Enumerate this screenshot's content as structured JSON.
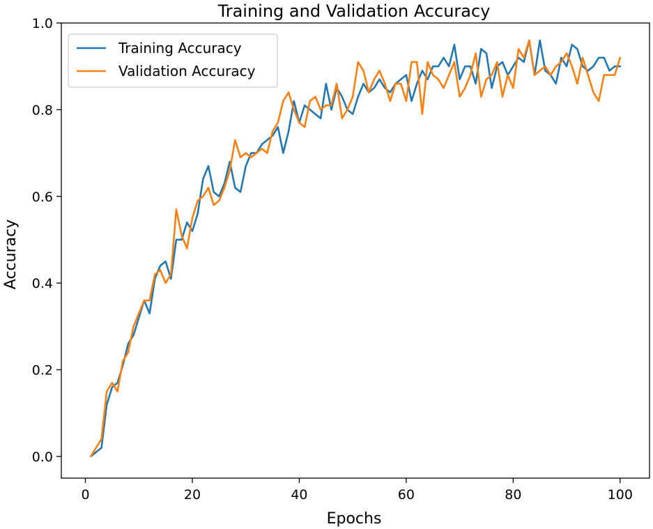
{
  "chart_data": {
    "type": "line",
    "title": "Training and Validation Accuracy",
    "xlabel": "Epochs",
    "ylabel": "Accuracy",
    "xlim": [
      -4.5,
      105.5
    ],
    "ylim": [
      -0.05,
      1.0
    ],
    "xticks": [
      0,
      20,
      40,
      60,
      80,
      100
    ],
    "yticks": [
      0.0,
      0.2,
      0.4,
      0.6,
      0.8,
      1.0
    ],
    "xtick_labels": [
      "0",
      "20",
      "40",
      "60",
      "80",
      "100"
    ],
    "ytick_labels": [
      "0.0",
      "0.2",
      "0.4",
      "0.6",
      "0.8",
      "1.0"
    ],
    "grid": false,
    "legend_position": "top-left",
    "x": [
      1,
      2,
      3,
      4,
      5,
      6,
      7,
      8,
      9,
      10,
      11,
      12,
      13,
      14,
      15,
      16,
      17,
      18,
      19,
      20,
      21,
      22,
      23,
      24,
      25,
      26,
      27,
      28,
      29,
      30,
      31,
      32,
      33,
      34,
      35,
      36,
      37,
      38,
      39,
      40,
      41,
      42,
      43,
      44,
      45,
      46,
      47,
      48,
      49,
      50,
      51,
      52,
      53,
      54,
      55,
      56,
      57,
      58,
      59,
      60,
      61,
      62,
      63,
      64,
      65,
      66,
      67,
      68,
      69,
      70,
      71,
      72,
      73,
      74,
      75,
      76,
      77,
      78,
      79,
      80,
      81,
      82,
      83,
      84,
      85,
      86,
      87,
      88,
      89,
      90,
      91,
      92,
      93,
      94,
      95,
      96,
      97,
      98,
      99,
      100
    ],
    "series": [
      {
        "name": "Training Accuracy",
        "color": "#1f77b4",
        "values": [
          0.0,
          0.01,
          0.02,
          0.12,
          0.16,
          0.17,
          0.21,
          0.26,
          0.28,
          0.32,
          0.36,
          0.33,
          0.41,
          0.44,
          0.45,
          0.41,
          0.5,
          0.5,
          0.54,
          0.52,
          0.56,
          0.64,
          0.67,
          0.61,
          0.6,
          0.63,
          0.68,
          0.62,
          0.61,
          0.67,
          0.7,
          0.7,
          0.72,
          0.73,
          0.74,
          0.76,
          0.7,
          0.75,
          0.82,
          0.77,
          0.81,
          0.8,
          0.79,
          0.78,
          0.86,
          0.8,
          0.85,
          0.83,
          0.8,
          0.79,
          0.83,
          0.86,
          0.84,
          0.85,
          0.87,
          0.85,
          0.84,
          0.86,
          0.87,
          0.88,
          0.82,
          0.86,
          0.89,
          0.87,
          0.9,
          0.9,
          0.92,
          0.9,
          0.95,
          0.87,
          0.9,
          0.9,
          0.86,
          0.94,
          0.93,
          0.85,
          0.9,
          0.91,
          0.88,
          0.9,
          0.92,
          0.91,
          0.96,
          0.88,
          0.96,
          0.89,
          0.88,
          0.86,
          0.92,
          0.9,
          0.95,
          0.94,
          0.9,
          0.89,
          0.9,
          0.92,
          0.92,
          0.89,
          0.9,
          0.9
        ]
      },
      {
        "name": "Validation Accuracy",
        "color": "#ff7f0e",
        "values": [
          0.0,
          0.02,
          0.04,
          0.15,
          0.17,
          0.15,
          0.22,
          0.24,
          0.3,
          0.33,
          0.36,
          0.36,
          0.42,
          0.43,
          0.4,
          0.42,
          0.57,
          0.51,
          0.48,
          0.55,
          0.59,
          0.6,
          0.62,
          0.58,
          0.59,
          0.62,
          0.66,
          0.73,
          0.69,
          0.7,
          0.69,
          0.7,
          0.71,
          0.7,
          0.75,
          0.77,
          0.82,
          0.84,
          0.8,
          0.77,
          0.76,
          0.82,
          0.83,
          0.8,
          0.81,
          0.81,
          0.86,
          0.78,
          0.8,
          0.83,
          0.91,
          0.89,
          0.84,
          0.87,
          0.89,
          0.86,
          0.82,
          0.86,
          0.86,
          0.82,
          0.91,
          0.91,
          0.79,
          0.91,
          0.88,
          0.87,
          0.85,
          0.88,
          0.91,
          0.83,
          0.85,
          0.88,
          0.93,
          0.83,
          0.87,
          0.88,
          0.91,
          0.83,
          0.88,
          0.85,
          0.94,
          0.92,
          0.96,
          0.88,
          0.89,
          0.9,
          0.88,
          0.9,
          0.91,
          0.93,
          0.9,
          0.86,
          0.92,
          0.88,
          0.84,
          0.82,
          0.88,
          0.88,
          0.88,
          0.92
        ]
      }
    ]
  }
}
